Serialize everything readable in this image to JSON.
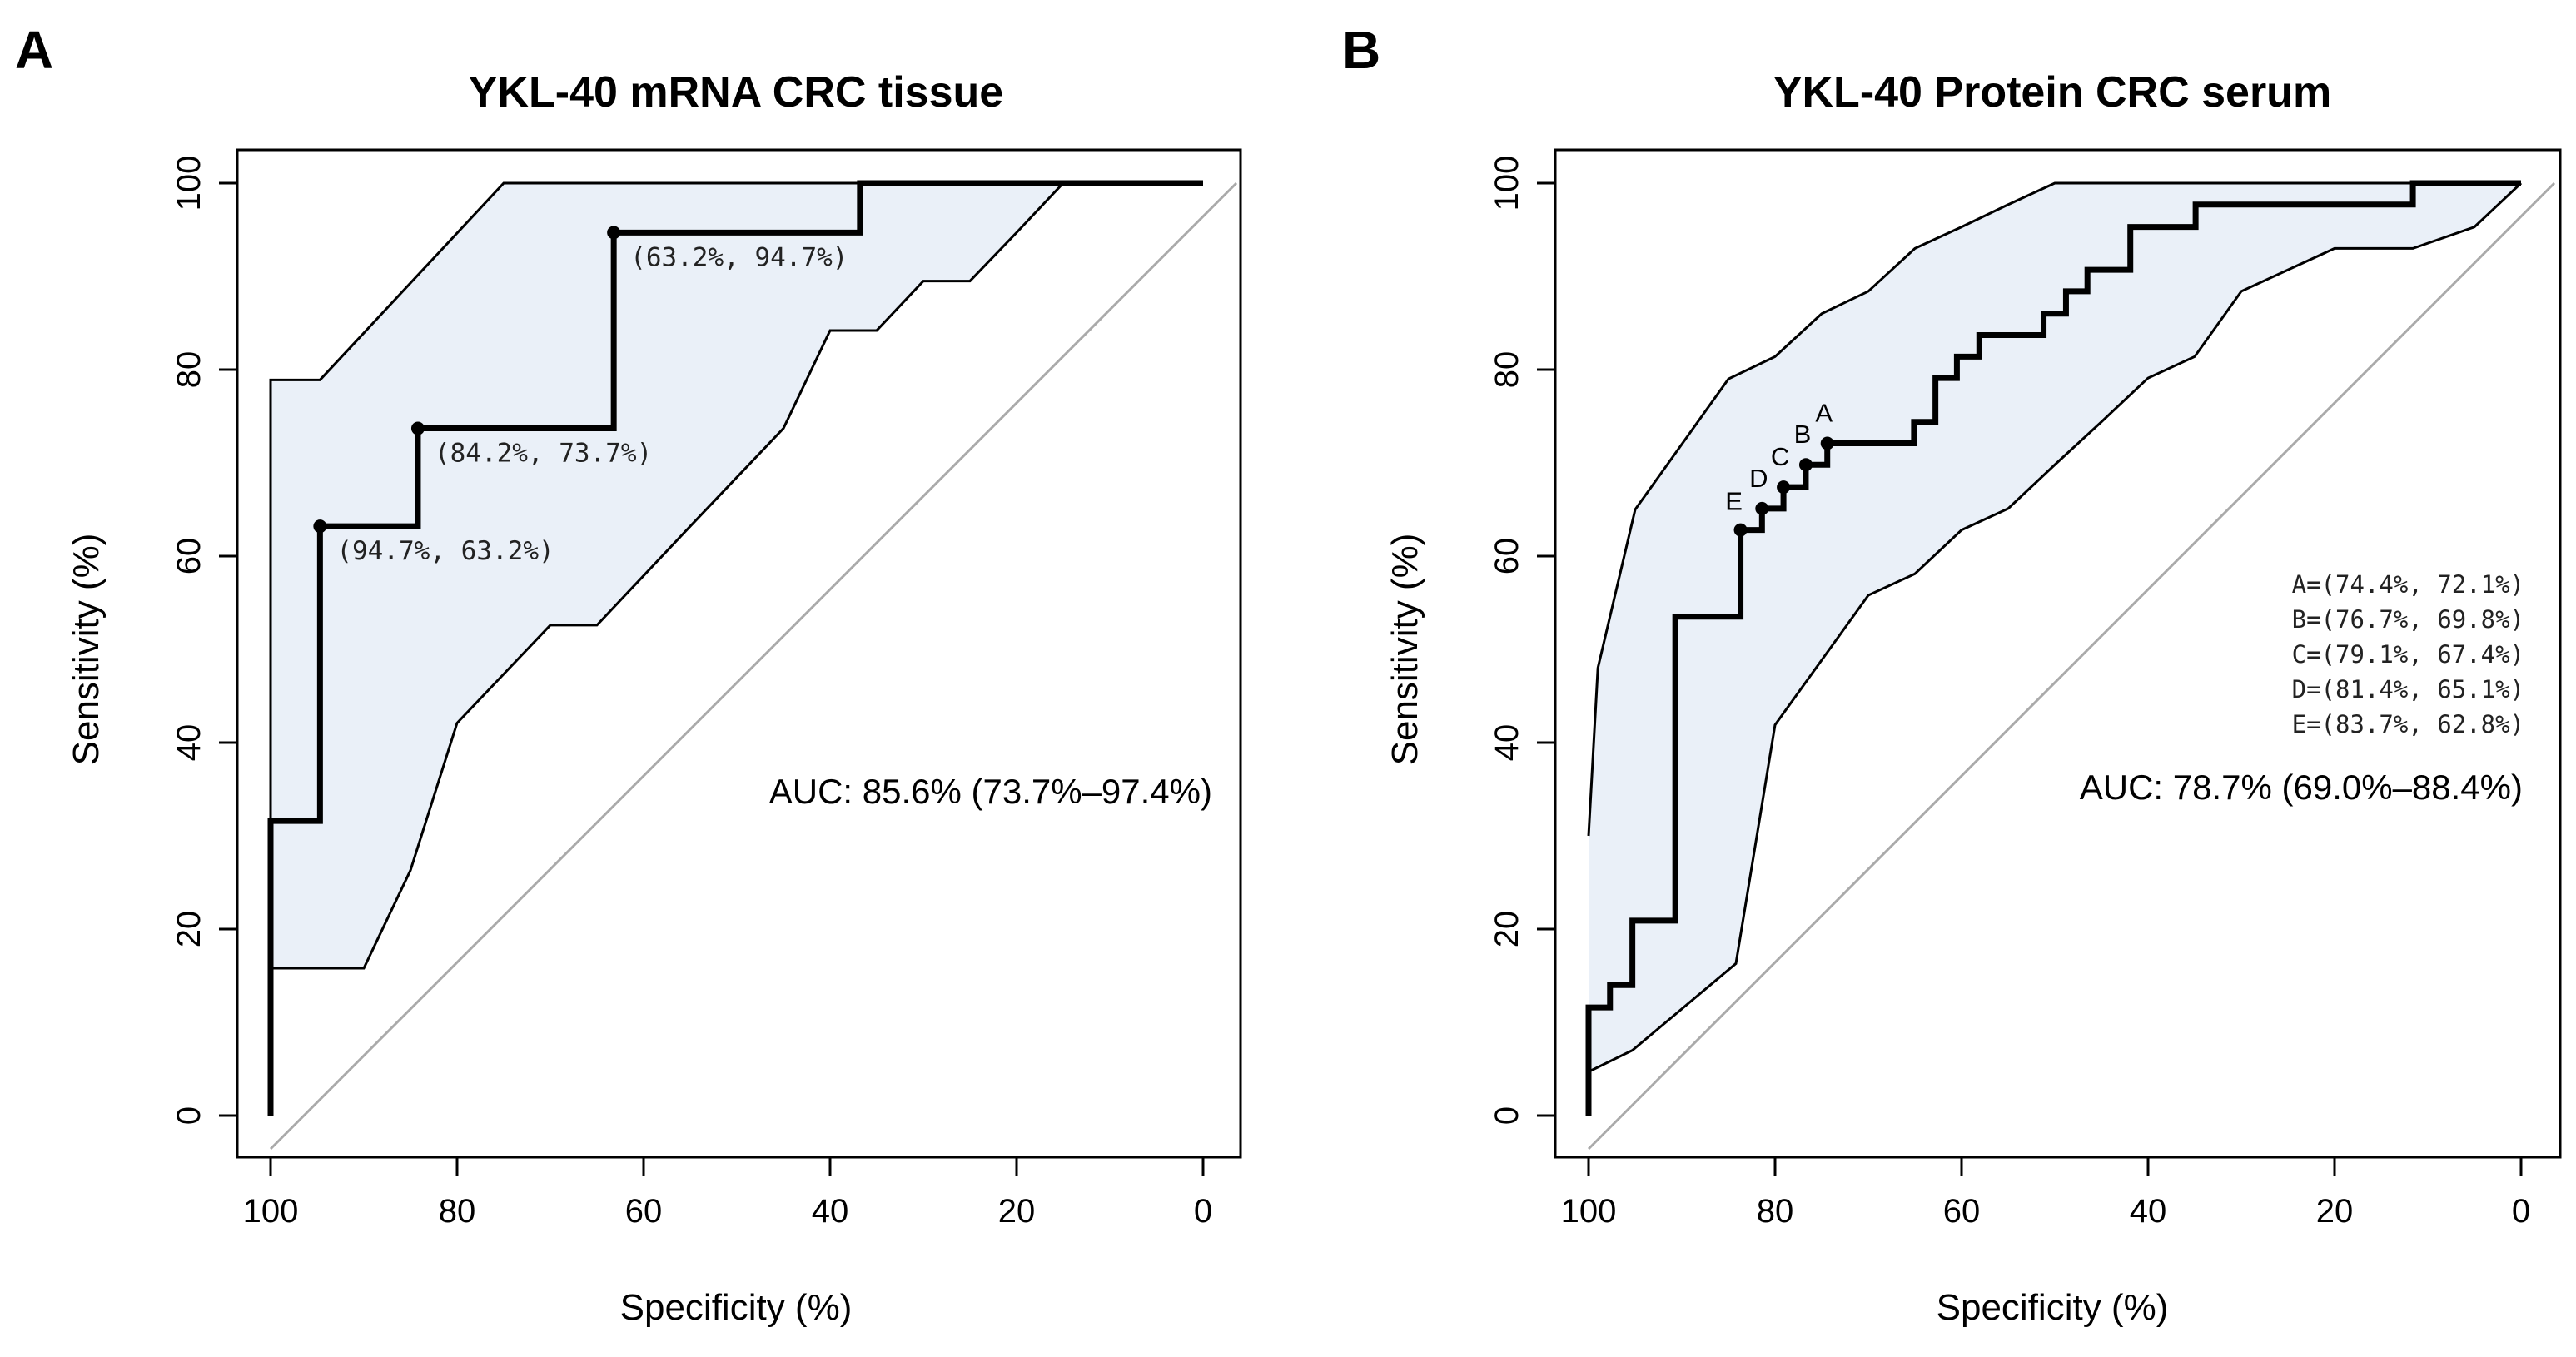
{
  "chart_data": [
    {
      "panel": "A",
      "type": "line",
      "title": "YKL-40 mRNA CRC tissue",
      "xlabel": "Specificity (%)",
      "ylabel": "Sensitivity (%)",
      "xlim": [
        100,
        0
      ],
      "ylim": [
        0,
        100
      ],
      "xticks": [
        100,
        80,
        60,
        40,
        20,
        0
      ],
      "yticks": [
        0,
        20,
        40,
        60,
        80,
        100
      ],
      "auc_text": "AUC: 85.6% (73.7%–97.4%)",
      "roc_curve": {
        "x": [
          100,
          100,
          94.7,
          94.7,
          84.2,
          84.2,
          63.2,
          63.2,
          36.8,
          36.8,
          0
        ],
        "y": [
          0,
          31.6,
          31.6,
          63.2,
          63.2,
          73.7,
          73.7,
          94.7,
          94.7,
          100,
          100
        ]
      },
      "ci_upper": {
        "x": [
          100,
          100,
          94.7,
          75,
          0
        ],
        "y": [
          15.8,
          78.9,
          78.9,
          100,
          100
        ]
      },
      "ci_lower": {
        "x": [
          100,
          90,
          85,
          80,
          70,
          65,
          55,
          45,
          40,
          35,
          30,
          25,
          20,
          15,
          0
        ],
        "y": [
          15.8,
          15.8,
          26.3,
          42.1,
          52.6,
          52.6,
          63.2,
          73.7,
          84.2,
          84.2,
          89.5,
          89.5,
          94.7,
          100,
          100
        ]
      },
      "marked_points": [
        {
          "x": 94.7,
          "y": 63.2,
          "label": "(94.7%, 63.2%)"
        },
        {
          "x": 84.2,
          "y": 73.7,
          "label": "(84.2%, 73.7%)"
        },
        {
          "x": 63.2,
          "y": 94.7,
          "label": "(63.2%, 94.7%)"
        }
      ]
    },
    {
      "panel": "B",
      "type": "line",
      "title": "YKL-40 Protein CRC serum",
      "xlabel": "Specificity (%)",
      "ylabel": "Sensitivity (%)",
      "xlim": [
        100,
        0
      ],
      "ylim": [
        0,
        100
      ],
      "xticks": [
        100,
        80,
        60,
        40,
        20,
        0
      ],
      "yticks": [
        0,
        20,
        40,
        60,
        80,
        100
      ],
      "auc_text": "AUC: 78.7% (69.0%–88.4%)",
      "roc_curve": {
        "x": [
          100,
          100,
          97.7,
          97.7,
          95.3,
          95.3,
          90.7,
          90.7,
          83.7,
          83.7,
          81.4,
          81.4,
          79.1,
          79.1,
          76.7,
          76.7,
          74.4,
          74.4,
          65.1,
          65.1,
          62.8,
          62.8,
          60.5,
          60.5,
          58.1,
          58.1,
          51.2,
          51.2,
          48.8,
          48.8,
          46.5,
          46.5,
          41.9,
          41.9,
          34.9,
          34.9,
          11.6,
          11.6,
          0
        ],
        "y": [
          0,
          11.6,
          11.6,
          14.0,
          14.0,
          20.9,
          20.9,
          53.5,
          53.5,
          62.8,
          62.8,
          65.1,
          65.1,
          67.4,
          67.4,
          69.8,
          69.8,
          72.1,
          72.1,
          74.4,
          74.4,
          79.1,
          79.1,
          81.4,
          81.4,
          83.7,
          83.7,
          86.0,
          86.0,
          88.4,
          88.4,
          90.7,
          90.7,
          95.3,
          95.3,
          97.7,
          97.7,
          100,
          100
        ]
      },
      "ci_upper": {
        "x": [
          100,
          99,
          95,
          90,
          85,
          80,
          75,
          70,
          65,
          60,
          55,
          50,
          0
        ],
        "y": [
          30,
          48,
          65,
          72,
          79,
          81.4,
          86,
          88.4,
          93,
          95.3,
          97.7,
          100,
          100
        ]
      },
      "ci_lower": {
        "x": [
          100,
          95.3,
          84.2,
          80,
          70,
          65,
          60,
          55,
          50,
          45,
          40,
          35,
          30,
          20,
          11.6,
          5,
          0
        ],
        "y": [
          4.7,
          7,
          16.3,
          41.9,
          55.8,
          58.1,
          62.8,
          65.1,
          69.8,
          74.4,
          79.1,
          81.4,
          88.4,
          93,
          93,
          95.3,
          100
        ]
      },
      "marked_points": [
        {
          "x": 74.4,
          "y": 72.1,
          "label": "A"
        },
        {
          "x": 76.7,
          "y": 69.8,
          "label": "B"
        },
        {
          "x": 79.1,
          "y": 67.4,
          "label": "C"
        },
        {
          "x": 81.4,
          "y": 65.1,
          "label": "D"
        },
        {
          "x": 83.7,
          "y": 62.8,
          "label": "E"
        }
      ],
      "legend": [
        "A=(74.4%, 72.1%)",
        "B=(76.7%, 69.8%)",
        "C=(79.1%, 67.4%)",
        "D=(81.4%, 65.1%)",
        "E=(83.7%, 62.8%)"
      ]
    }
  ],
  "colors": {
    "ci_fill": "#eaf0f8",
    "curve": "#000000",
    "diagonal": "#aaaaaa"
  }
}
